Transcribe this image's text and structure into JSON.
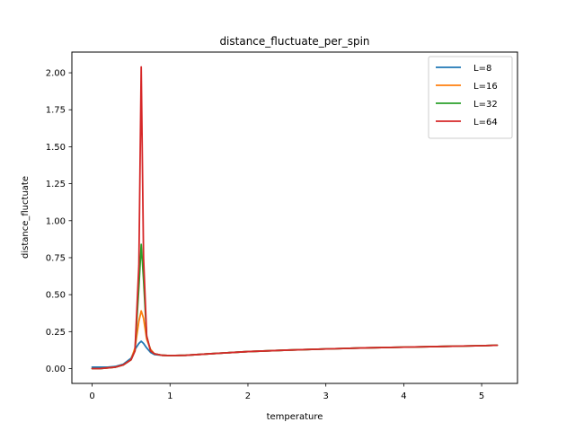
{
  "chart_data": {
    "type": "line",
    "title": "distance_fluctuate_per_spin",
    "xlabel": "temperature",
    "ylabel": "distance_fluctuate",
    "xlim": [
      -0.26,
      5.46
    ],
    "ylim": [
      -0.1,
      2.14
    ],
    "xticks": [
      0,
      1,
      2,
      3,
      4,
      5
    ],
    "xtick_labels": [
      "0",
      "1",
      "2",
      "3",
      "4",
      "5"
    ],
    "yticks": [
      0.0,
      0.25,
      0.5,
      0.75,
      1.0,
      1.25,
      1.5,
      1.75,
      2.0
    ],
    "ytick_labels": [
      "0.00",
      "0.25",
      "0.50",
      "0.75",
      "1.00",
      "1.25",
      "1.50",
      "1.75",
      "2.00"
    ],
    "grid": false,
    "legend_position": "top-right",
    "series": [
      {
        "name": "L=8",
        "color": "#1f77b4",
        "x": [
          0,
          0.1,
          0.2,
          0.3,
          0.4,
          0.5,
          0.55,
          0.6,
          0.63,
          0.66,
          0.7,
          0.75,
          0.8,
          0.9,
          1.0,
          1.2,
          1.5,
          2.0,
          2.5,
          3.0,
          3.5,
          4.0,
          4.5,
          5.0,
          5.2
        ],
        "values": [
          0.01,
          0.01,
          0.01,
          0.015,
          0.03,
          0.07,
          0.13,
          0.17,
          0.185,
          0.17,
          0.14,
          0.11,
          0.095,
          0.09,
          0.088,
          0.09,
          0.1,
          0.115,
          0.125,
          0.133,
          0.14,
          0.145,
          0.15,
          0.155,
          0.158
        ]
      },
      {
        "name": "L=16",
        "color": "#ff7f0e",
        "x": [
          0,
          0.1,
          0.2,
          0.3,
          0.4,
          0.5,
          0.55,
          0.6,
          0.63,
          0.66,
          0.7,
          0.75,
          0.8,
          0.9,
          1.0,
          1.2,
          1.5,
          2.0,
          2.5,
          3.0,
          3.5,
          4.0,
          4.5,
          5.0,
          5.2
        ],
        "values": [
          0.0,
          0.0,
          0.005,
          0.01,
          0.025,
          0.06,
          0.14,
          0.32,
          0.39,
          0.34,
          0.2,
          0.13,
          0.1,
          0.09,
          0.088,
          0.09,
          0.1,
          0.115,
          0.125,
          0.133,
          0.14,
          0.145,
          0.15,
          0.155,
          0.158
        ]
      },
      {
        "name": "L=32",
        "color": "#2ca02c",
        "x": [
          0,
          0.1,
          0.2,
          0.3,
          0.4,
          0.5,
          0.55,
          0.6,
          0.63,
          0.66,
          0.7,
          0.75,
          0.8,
          0.9,
          1.0,
          1.2,
          1.5,
          2.0,
          2.5,
          3.0,
          3.5,
          4.0,
          4.5,
          5.0,
          5.2
        ],
        "values": [
          0.0,
          0.0,
          0.005,
          0.01,
          0.025,
          0.06,
          0.12,
          0.55,
          0.84,
          0.6,
          0.22,
          0.12,
          0.1,
          0.09,
          0.088,
          0.09,
          0.1,
          0.115,
          0.125,
          0.133,
          0.14,
          0.145,
          0.15,
          0.155,
          0.158
        ]
      },
      {
        "name": "L=64",
        "color": "#d62728",
        "x": [
          0,
          0.1,
          0.2,
          0.3,
          0.4,
          0.5,
          0.55,
          0.6,
          0.63,
          0.66,
          0.7,
          0.75,
          0.8,
          0.9,
          1.0,
          1.2,
          1.5,
          2.0,
          2.5,
          3.0,
          3.5,
          4.0,
          4.5,
          5.0,
          5.2
        ],
        "values": [
          0.0,
          0.0,
          0.005,
          0.01,
          0.025,
          0.06,
          0.12,
          0.7,
          2.04,
          0.75,
          0.22,
          0.12,
          0.1,
          0.09,
          0.088,
          0.09,
          0.1,
          0.115,
          0.125,
          0.133,
          0.14,
          0.145,
          0.15,
          0.155,
          0.158
        ]
      }
    ]
  }
}
